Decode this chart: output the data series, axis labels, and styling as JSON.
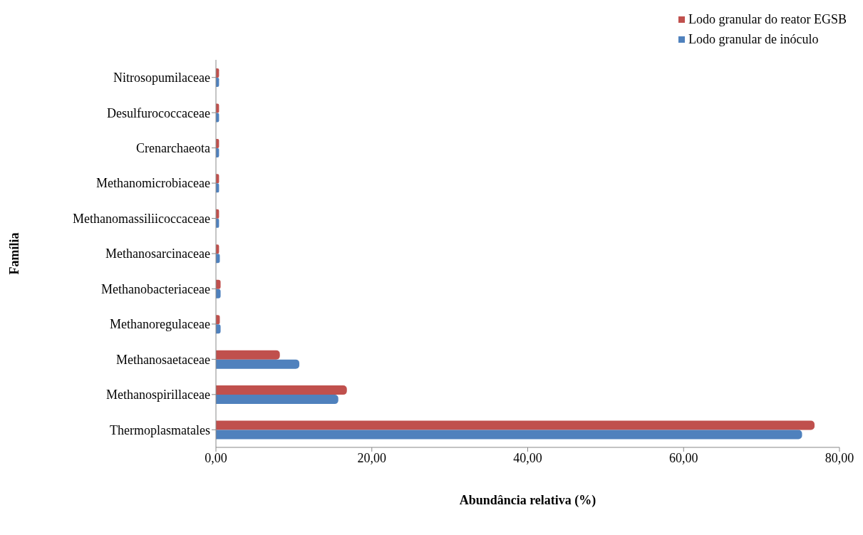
{
  "chart_data": {
    "type": "bar",
    "orientation": "horizontal",
    "xlabel": "Abundância  relativa (%)",
    "ylabel": "Família",
    "categories": [
      "Nitrosopumilaceae",
      "Desulfurococcaceae",
      "Crenarchaeota",
      "Methanomicrobiaceae",
      "Methanomassiliicoccaceae",
      "Methanosarcinaceae",
      "Methanobacteriaceae",
      "Methanoregulaceae",
      "Methanosaetaceae",
      "Methanospirillaceae",
      "Thermoplasmatales"
    ],
    "series": [
      {
        "name": "Lodo granular do reator EGSB",
        "color": "#c0504d",
        "values": [
          0.4,
          0.4,
          0.4,
          0.4,
          0.4,
          0.4,
          0.6,
          0.5,
          8.2,
          16.8,
          76.8
        ]
      },
      {
        "name": "Lodo granular de inóculo",
        "color": "#4f81bd",
        "values": [
          0.4,
          0.4,
          0.4,
          0.4,
          0.4,
          0.5,
          0.6,
          0.6,
          10.7,
          15.7,
          75.2
        ]
      }
    ],
    "xlim": [
      0,
      80
    ],
    "xticks": [
      {
        "value": 0,
        "label": "0,00"
      },
      {
        "value": 20,
        "label": "20,00"
      },
      {
        "value": 40,
        "label": "40,00"
      },
      {
        "value": 60,
        "label": "60,00"
      },
      {
        "value": 80,
        "label": "80,00"
      }
    ],
    "grid": false,
    "legend": "top right"
  }
}
